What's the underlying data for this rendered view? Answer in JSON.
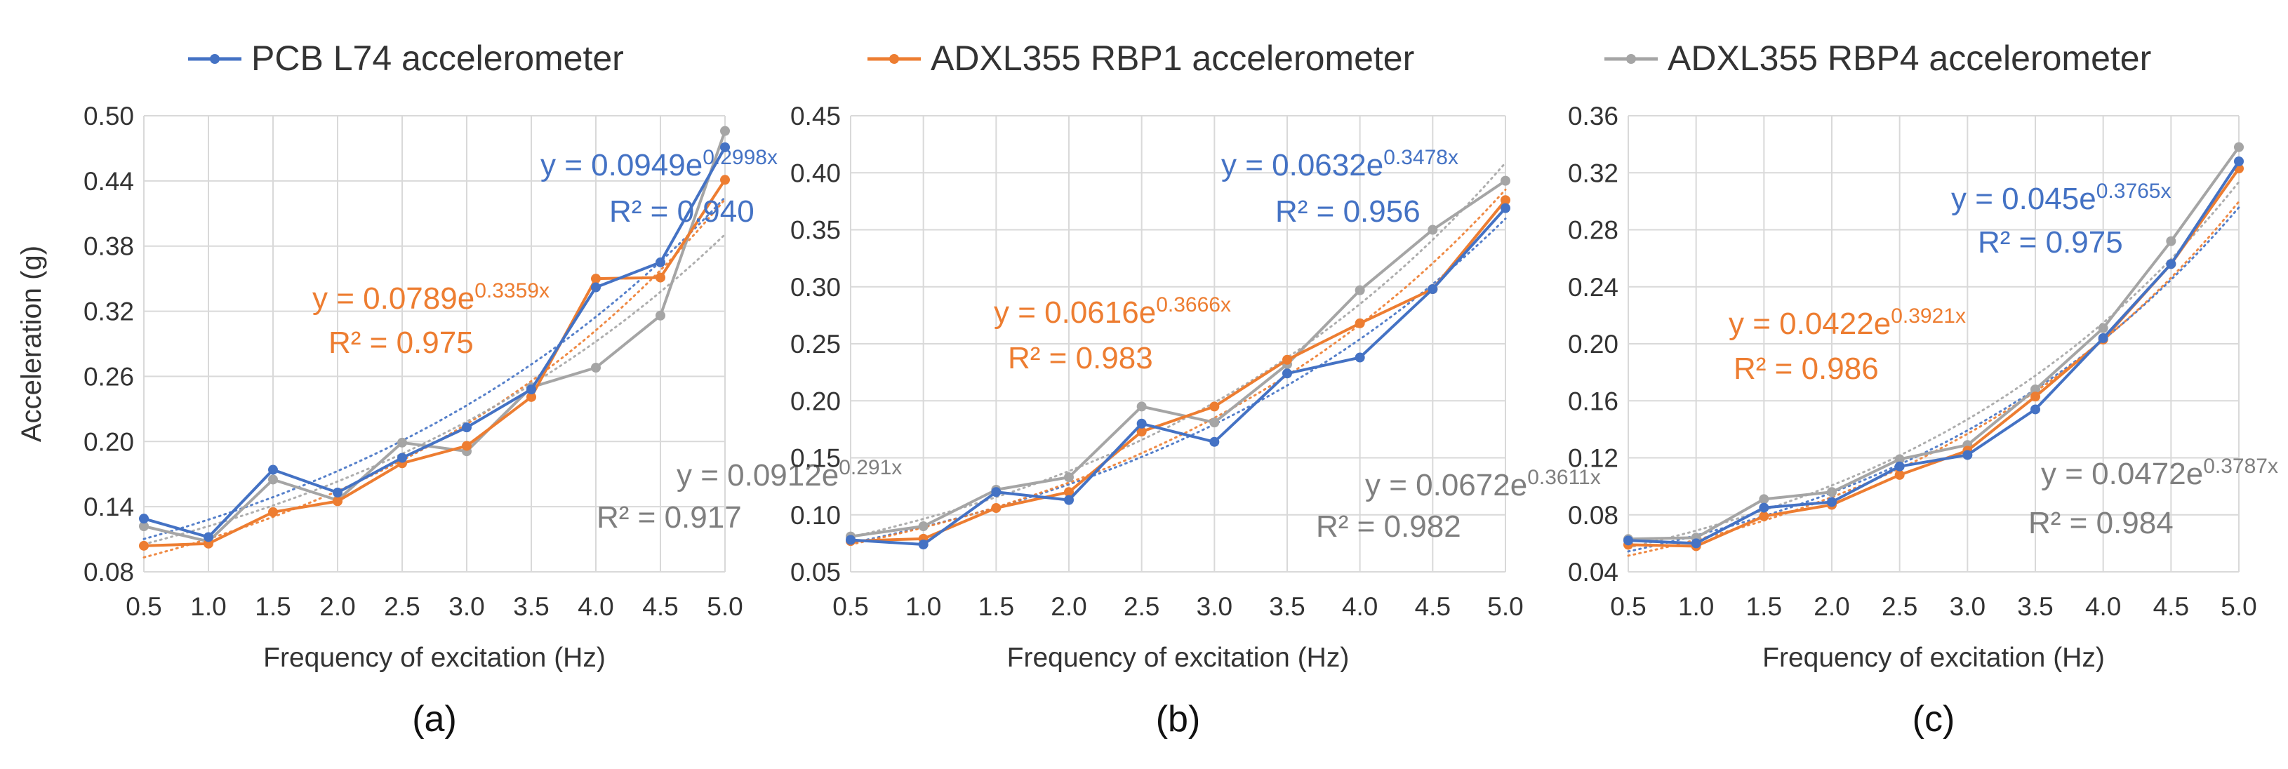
{
  "legend": [
    {
      "name": "PCB L74 accelerometer",
      "color": "#4472C4"
    },
    {
      "name": "ADXL355 RBP1 accelerometer",
      "color": "#ED7D31"
    },
    {
      "name": "ADXL355 RBP4 accelerometer",
      "color": "#A5A5A5"
    }
  ],
  "colors": {
    "blue": "#4472C4",
    "orange": "#ED7D31",
    "gray": "#A5A5A5",
    "gray_text": "#7F7F7F",
    "grid": "#D9D9D9"
  },
  "chart_data": [
    {
      "type": "line",
      "panel_label": "(a)",
      "xlabel": "Frequency of excitation (Hz)",
      "ylabel": "Acceleration (g)",
      "x": [
        0.5,
        1.0,
        1.5,
        2.0,
        2.5,
        3.0,
        3.5,
        4.0,
        4.5,
        5.0
      ],
      "x_tick_labels": [
        "0.5",
        "1.0",
        "1.5",
        "2.0",
        "2.5",
        "3.0",
        "3.5",
        "4.0",
        "4.5",
        "5.0"
      ],
      "ylim": [
        0.08,
        0.5
      ],
      "y_ticks": [
        0.08,
        0.14,
        0.2,
        0.26,
        0.32,
        0.38,
        0.44,
        0.5
      ],
      "y_tick_labels": [
        "0.08",
        "0.14",
        "0.20",
        "0.26",
        "0.32",
        "0.38",
        "0.44",
        "0.50"
      ],
      "grid": true,
      "series": [
        {
          "name": "PCB L74 accelerometer",
          "color": "#4472C4",
          "values": [
            0.129,
            0.112,
            0.174,
            0.153,
            0.185,
            0.213,
            0.248,
            0.342,
            0.365,
            0.471
          ],
          "trend": {
            "a": 0.0949,
            "b": 0.2998
          }
        },
        {
          "name": "ADXL355 RBP1 accelerometer",
          "color": "#ED7D31",
          "values": [
            0.104,
            0.106,
            0.135,
            0.145,
            0.18,
            0.196,
            0.241,
            0.35,
            0.351,
            0.441
          ],
          "trend": {
            "a": 0.0789,
            "b": 0.3359
          }
        },
        {
          "name": "ADXL355 RBP4 accelerometer",
          "color": "#A5A5A5",
          "values": [
            0.122,
            0.108,
            0.165,
            0.146,
            0.199,
            0.191,
            0.25,
            0.268,
            0.316,
            0.486
          ],
          "trend": {
            "a": 0.0912,
            "b": 0.291
          }
        }
      ],
      "annotations": [
        {
          "series": 0,
          "eq_base": "y = 0.0949e",
          "eq_exp": "0.2998x",
          "r2": "R² = 0.940"
        },
        {
          "series": 1,
          "eq_base": "y = 0.0789e",
          "eq_exp": "0.3359x",
          "r2": "R² = 0.975"
        },
        {
          "series": 2,
          "eq_base": "y = 0.0912e",
          "eq_exp": "0.291x",
          "r2": "R² = 0.917"
        }
      ]
    },
    {
      "type": "line",
      "panel_label": "(b)",
      "xlabel": "Frequency of excitation (Hz)",
      "ylabel": "",
      "x": [
        0.5,
        1.0,
        1.5,
        2.0,
        2.5,
        3.0,
        3.5,
        4.0,
        4.5,
        5.0
      ],
      "x_tick_labels": [
        "0.5",
        "1.0",
        "1.5",
        "2.0",
        "2.5",
        "3.0",
        "3.5",
        "4.0",
        "4.5",
        "5.0"
      ],
      "ylim": [
        0.05,
        0.45
      ],
      "y_ticks": [
        0.05,
        0.1,
        0.15,
        0.2,
        0.25,
        0.3,
        0.35,
        0.4,
        0.45
      ],
      "y_tick_labels": [
        "0.05",
        "0.10",
        "0.15",
        "0.20",
        "0.25",
        "0.30",
        "0.35",
        "0.40",
        "0.45"
      ],
      "grid": true,
      "series": [
        {
          "name": "PCB L74 accelerometer",
          "color": "#4472C4",
          "values": [
            0.078,
            0.074,
            0.12,
            0.113,
            0.18,
            0.164,
            0.224,
            0.238,
            0.298,
            0.369
          ],
          "trend": {
            "a": 0.0632,
            "b": 0.3478
          }
        },
        {
          "name": "ADXL355 RBP1 accelerometer",
          "color": "#ED7D31",
          "values": [
            0.077,
            0.079,
            0.106,
            0.12,
            0.173,
            0.195,
            0.236,
            0.268,
            0.298,
            0.376
          ],
          "trend": {
            "a": 0.0616,
            "b": 0.3666
          }
        },
        {
          "name": "ADXL355 RBP4 accelerometer",
          "color": "#A5A5A5",
          "values": [
            0.081,
            0.09,
            0.122,
            0.133,
            0.195,
            0.181,
            0.232,
            0.297,
            0.35,
            0.393
          ],
          "trend": {
            "a": 0.0672,
            "b": 0.3611
          }
        }
      ],
      "annotations": [
        {
          "series": 0,
          "eq_base": "y = 0.0632e",
          "eq_exp": "0.3478x",
          "r2": "R² = 0.956"
        },
        {
          "series": 1,
          "eq_base": "y = 0.0616e",
          "eq_exp": "0.3666x",
          "r2": "R² = 0.983"
        },
        {
          "series": 2,
          "eq_base": "y = 0.0672e",
          "eq_exp": "0.3611x",
          "r2": "R² = 0.982"
        }
      ]
    },
    {
      "type": "line",
      "panel_label": "(c)",
      "xlabel": "Frequency of excitation (Hz)",
      "ylabel": "",
      "x": [
        0.5,
        1.0,
        1.5,
        2.0,
        2.5,
        3.0,
        3.5,
        4.0,
        4.5,
        5.0
      ],
      "x_tick_labels": [
        "0.5",
        "1.0",
        "1.5",
        "2.0",
        "2.5",
        "3.0",
        "3.5",
        "4.0",
        "4.5",
        "5.0"
      ],
      "ylim": [
        0.04,
        0.36
      ],
      "y_ticks": [
        0.04,
        0.08,
        0.12,
        0.16,
        0.2,
        0.24,
        0.28,
        0.32,
        0.36
      ],
      "y_tick_labels": [
        "0.04",
        "0.08",
        "0.12",
        "0.16",
        "0.20",
        "0.24",
        "0.28",
        "0.32",
        "0.36"
      ],
      "grid": true,
      "series": [
        {
          "name": "PCB L74 accelerometer",
          "color": "#4472C4",
          "values": [
            0.062,
            0.06,
            0.085,
            0.089,
            0.114,
            0.122,
            0.154,
            0.204,
            0.256,
            0.328
          ],
          "trend": {
            "a": 0.045,
            "b": 0.3765
          }
        },
        {
          "name": "ADXL355 RBP1 accelerometer",
          "color": "#ED7D31",
          "values": [
            0.059,
            0.058,
            0.079,
            0.087,
            0.108,
            0.125,
            0.163,
            0.203,
            0.256,
            0.323
          ],
          "trend": {
            "a": 0.0422,
            "b": 0.3921
          }
        },
        {
          "name": "ADXL355 RBP4 accelerometer",
          "color": "#A5A5A5",
          "values": [
            0.063,
            0.064,
            0.091,
            0.096,
            0.119,
            0.129,
            0.168,
            0.211,
            0.272,
            0.338
          ],
          "trend": {
            "a": 0.0472,
            "b": 0.3787
          }
        }
      ],
      "annotations": [
        {
          "series": 0,
          "eq_base": "y = 0.045e",
          "eq_exp": "0.3765x",
          "r2": "R² = 0.975"
        },
        {
          "series": 1,
          "eq_base": "y = 0.0422e",
          "eq_exp": "0.3921x",
          "r2": "R² = 0.986"
        },
        {
          "series": 2,
          "eq_base": "y = 0.0472e",
          "eq_exp": "0.3787x",
          "r2": "R² = 0.984"
        }
      ]
    }
  ]
}
